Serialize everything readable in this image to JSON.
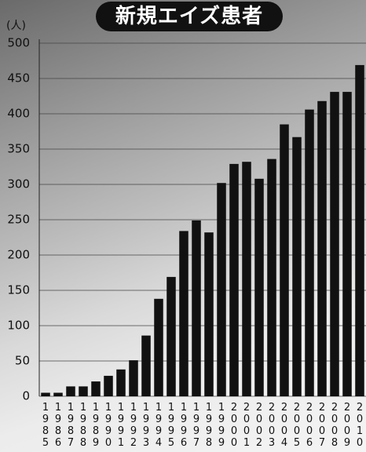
{
  "chart_data": {
    "type": "bar",
    "title": "新規エイズ患者",
    "y_label": "(人)",
    "categories": [
      "1985",
      "1986",
      "1987",
      "1988",
      "1989",
      "1990",
      "1991",
      "1992",
      "1993",
      "1994",
      "1995",
      "1996",
      "1997",
      "1998",
      "1999",
      "2000",
      "2001",
      "2002",
      "2003",
      "2004",
      "2005",
      "2006",
      "2007",
      "2008",
      "2009",
      "2010"
    ],
    "values": [
      5,
      5,
      14,
      14,
      21,
      29,
      38,
      51,
      86,
      138,
      169,
      234,
      249,
      232,
      302,
      329,
      332,
      308,
      336,
      385,
      367,
      406,
      418,
      431,
      431,
      469
    ],
    "color": "#111111",
    "ylim": [
      0,
      500
    ],
    "yticks": [
      0,
      50,
      100,
      150,
      200,
      250,
      300,
      350,
      400,
      450,
      500
    ],
    "grid": true
  }
}
